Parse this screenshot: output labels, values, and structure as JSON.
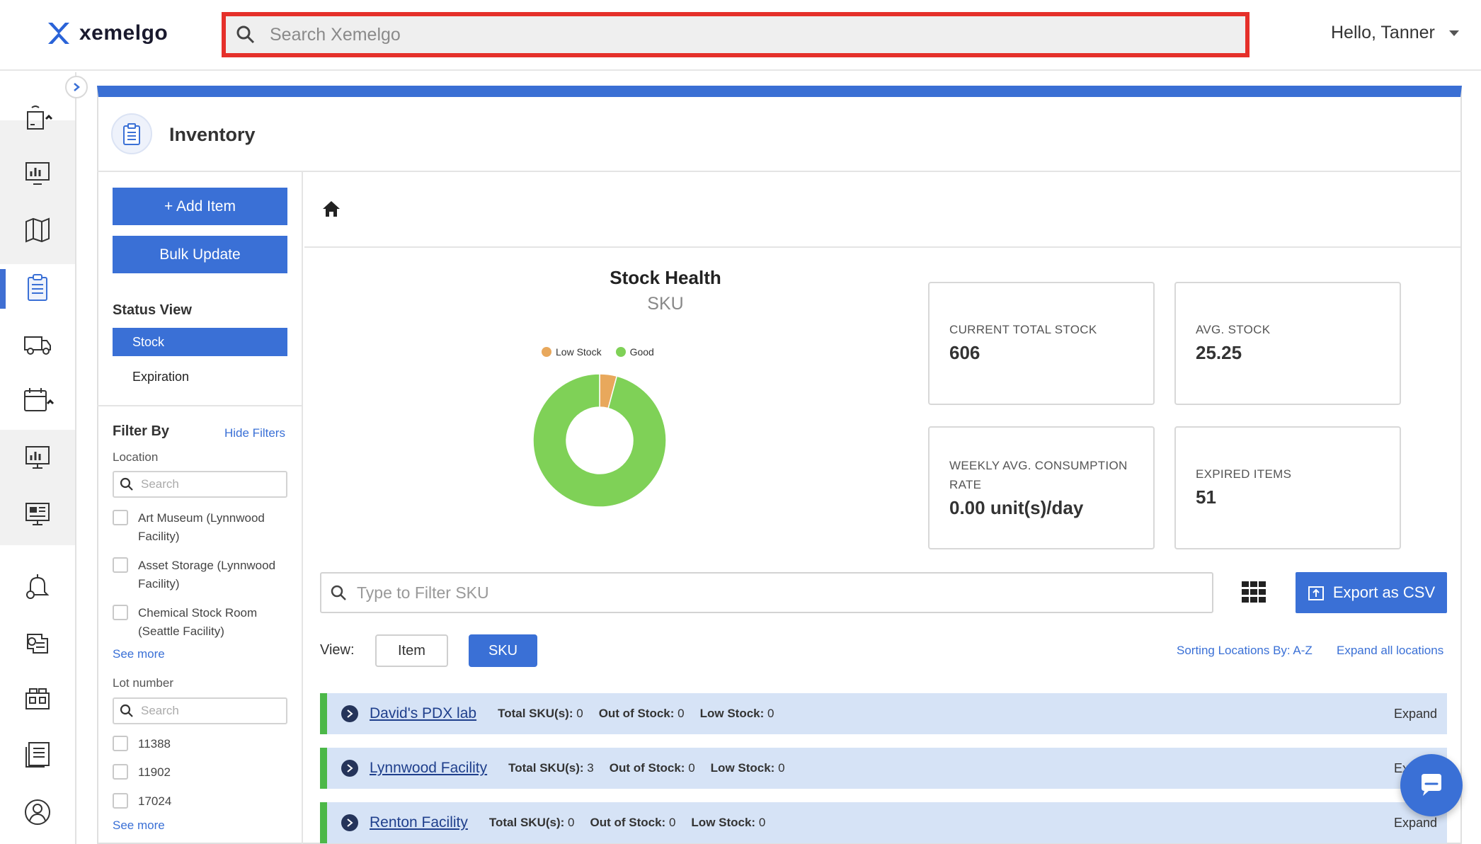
{
  "header": {
    "logo_text": "xemelgo",
    "search_placeholder": "Search Xemelgo",
    "greeting": "Hello, Tanner"
  },
  "sidebar": {
    "icons": [
      "asset-tracking-icon",
      "dashboard-icon",
      "map-icon",
      "inventory-clipboard-icon",
      "shipping-truck-icon",
      "calendar-icon",
      "monitor-chart-icon",
      "display-report-icon",
      "alert-bell-icon",
      "settings-hierarchy-icon",
      "devices-icon",
      "reports-list-icon",
      "user-profile-icon"
    ]
  },
  "page": {
    "title": "Inventory"
  },
  "left_panel": {
    "add_item": "+ Add Item",
    "bulk_update": "Bulk Update",
    "status_view_title": "Status View",
    "status_options": [
      "Stock",
      "Expiration"
    ],
    "filter_title": "Filter By",
    "hide_filters": "Hide Filters",
    "location_label": "Location",
    "location_search_placeholder": "Search",
    "locations": [
      {
        "line1": "Art Museum (Lynnwood",
        "line2": "Facility)"
      },
      {
        "line1": "Asset Storage (Lynnwood",
        "line2": "Facility)"
      },
      {
        "line1": "Chemical Stock Room",
        "line2": "(Seattle Facility)"
      }
    ],
    "see_more": "See more",
    "lot_label": "Lot number",
    "lot_search_placeholder": "Search",
    "lots": [
      "11388",
      "11902",
      "17024"
    ]
  },
  "chart_data": {
    "type": "pie",
    "title": "Stock Health",
    "subtitle": "SKU",
    "donut": true,
    "categories": [
      "Low Stock",
      "Good"
    ],
    "values": [
      1,
      23
    ],
    "colors": [
      "#e8a85c",
      "#7fd157"
    ],
    "legend_position": "top"
  },
  "metrics": {
    "current_total_stock_label": "CURRENT TOTAL STOCK",
    "current_total_stock": "606",
    "avg_stock_label": "AVG. STOCK",
    "avg_stock": "25.25",
    "weekly_label_1": "WEEKLY AVG. CONSUMPTION",
    "weekly_label_2": "RATE",
    "weekly_value": "0.00 unit(s)/day",
    "expired_label": "EXPIRED ITEMS",
    "expired_value": "51"
  },
  "toolbar": {
    "filter_placeholder": "Type to Filter SKU",
    "export_label": "Export as CSV",
    "view_label": "View:",
    "view_item": "Item",
    "view_sku": "SKU",
    "sorting_label": "Sorting Locations By: A-Z",
    "expand_all": "Expand all locations"
  },
  "locations": [
    {
      "name": "David's PDX lab",
      "total_sku_label": "Total SKU(s):",
      "total_sku": "0",
      "out_label": "Out of Stock:",
      "out": "0",
      "low_label": "Low Stock:",
      "low": "0",
      "expand": "Expand"
    },
    {
      "name": "Lynnwood Facility",
      "total_sku_label": "Total SKU(s):",
      "total_sku": "3",
      "out_label": "Out of Stock:",
      "out": "0",
      "low_label": "Low Stock:",
      "low": "0",
      "expand": "Expand"
    },
    {
      "name": "Renton Facility",
      "total_sku_label": "Total SKU(s):",
      "total_sku": "0",
      "out_label": "Out of Stock:",
      "out": "0",
      "low_label": "Low Stock:",
      "low": "0",
      "expand": "Expand"
    }
  ],
  "colors": {
    "accent": "#3a70d6",
    "highlight_border": "#e5302a",
    "row_bg": "#d6e3f6",
    "row_marker": "#4cb848"
  }
}
